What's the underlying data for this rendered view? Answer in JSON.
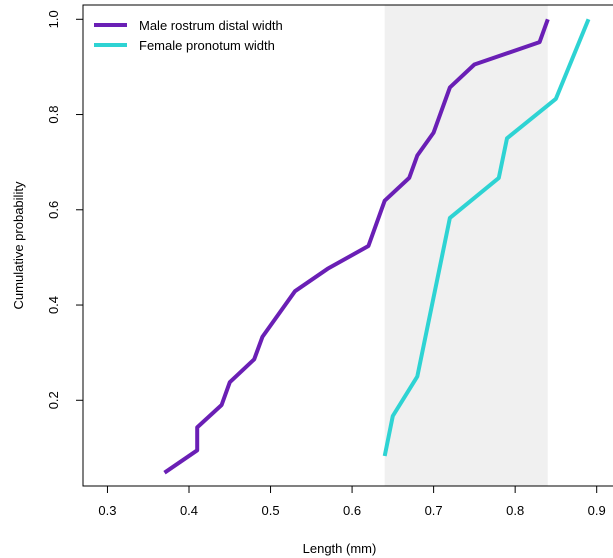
{
  "chart_data": {
    "type": "line",
    "xlabel": "Length (mm)",
    "ylabel": "Cumulative probability",
    "xlim": [
      0.27,
      0.92
    ],
    "ylim": [
      0.02,
      1.03
    ],
    "x_ticks": [
      0.3,
      0.4,
      0.5,
      0.6,
      0.7,
      0.8,
      0.9
    ],
    "y_ticks": [
      0.2,
      0.4,
      0.6,
      0.8,
      1.0
    ],
    "x_tick_labels": [
      "0.3",
      "0.4",
      "0.5",
      "0.6",
      "0.7",
      "0.8",
      "0.9"
    ],
    "y_tick_labels": [
      "0.2",
      "0.4",
      "0.6",
      "0.8",
      "1.0"
    ],
    "grid": false,
    "legend_position": "top-left",
    "shaded_band": {
      "x_range": [
        0.64,
        0.84
      ],
      "color": "#f0f0f0"
    },
    "series": [
      {
        "name": "Male rostrum distal width",
        "color": "#6a1fb5",
        "points": [
          [
            0.37,
            0.048
          ],
          [
            0.41,
            0.095
          ],
          [
            0.41,
            0.143
          ],
          [
            0.44,
            0.19
          ],
          [
            0.45,
            0.238
          ],
          [
            0.48,
            0.286
          ],
          [
            0.49,
            0.333
          ],
          [
            0.53,
            0.429
          ],
          [
            0.57,
            0.476
          ],
          [
            0.62,
            0.524
          ],
          [
            0.64,
            0.619
          ],
          [
            0.67,
            0.667
          ],
          [
            0.68,
            0.714
          ],
          [
            0.7,
            0.762
          ],
          [
            0.72,
            0.857
          ],
          [
            0.75,
            0.905
          ],
          [
            0.83,
            0.952
          ],
          [
            0.84,
            1.0
          ]
        ]
      },
      {
        "name": "Female pronotum width",
        "color": "#2ed3d3",
        "points": [
          [
            0.64,
            0.083
          ],
          [
            0.65,
            0.167
          ],
          [
            0.68,
            0.25
          ],
          [
            0.72,
            0.583
          ],
          [
            0.78,
            0.667
          ],
          [
            0.79,
            0.75
          ],
          [
            0.85,
            0.833
          ],
          [
            0.89,
            1.0
          ]
        ]
      }
    ]
  }
}
